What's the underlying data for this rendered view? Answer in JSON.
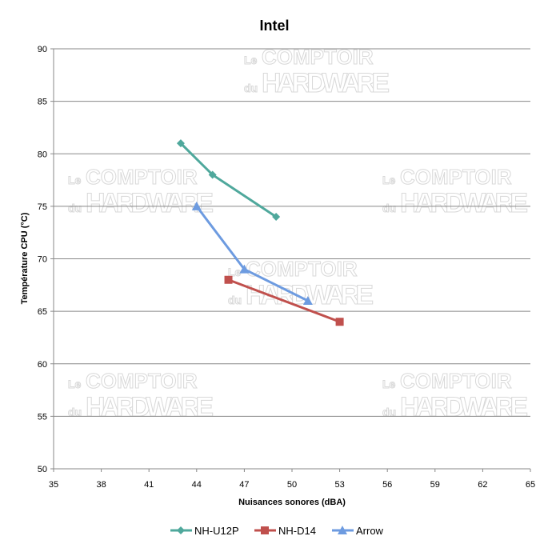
{
  "chart_data": {
    "type": "line",
    "title": "Intel",
    "xlabel": "Nuisances sonores (dBA)",
    "ylabel": "Température CPU (°C)",
    "xlim": [
      35,
      65
    ],
    "ylim": [
      50,
      90
    ],
    "xticks": [
      35,
      38,
      41,
      44,
      47,
      50,
      53,
      56,
      59,
      62,
      65
    ],
    "yticks": [
      50,
      55,
      60,
      65,
      70,
      75,
      80,
      85,
      90
    ],
    "grid": "horizontal",
    "legend": "bottom",
    "series": [
      {
        "name": "NH-U12P",
        "color": "#4fa89c",
        "marker": "diamond",
        "points": [
          [
            43,
            81
          ],
          [
            45,
            78
          ],
          [
            49,
            74
          ]
        ]
      },
      {
        "name": "NH-D14",
        "color": "#c0504d",
        "marker": "square",
        "points": [
          [
            46,
            68
          ],
          [
            53,
            64
          ]
        ]
      },
      {
        "name": "Arrow",
        "color": "#6d9be0",
        "marker": "triangle",
        "points": [
          [
            44,
            75
          ],
          [
            47,
            69
          ],
          [
            51,
            66
          ]
        ]
      }
    ]
  },
  "watermark": {
    "line1_small": "Le",
    "line1": "COMPTOIR",
    "line2_small": "du",
    "line2": "HARDWARE"
  }
}
